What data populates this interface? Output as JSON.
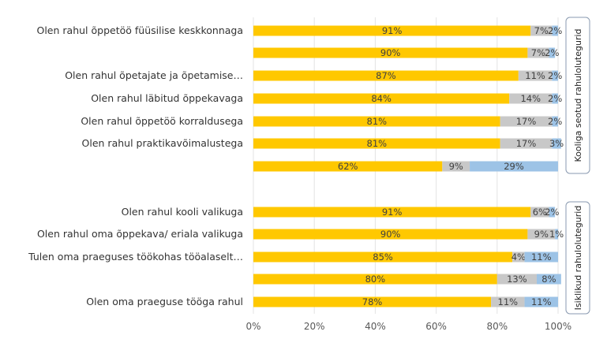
{
  "chart_data": {
    "type": "bar",
    "stacked": true,
    "orientation": "horizontal",
    "xlim": [
      0,
      100
    ],
    "xticks": [
      "0%",
      "20%",
      "40%",
      "60%",
      "80%",
      "100%"
    ],
    "grid": true,
    "colors": [
      "#FFC800",
      "#C8C8C8",
      "#9DC3E6"
    ],
    "groups": [
      {
        "name": "Kooliga seotud rahulolutegurid",
        "categories": [
          {
            "label": "Olen rahul õppetöö füüsilise keskkonnaga",
            "values": [
              91,
              7,
              2
            ]
          },
          {
            "label": "",
            "values": [
              90,
              7,
              2
            ]
          },
          {
            "label": "Olen rahul õpetajate ja õpetamise…",
            "values": [
              87,
              11,
              2
            ]
          },
          {
            "label": "Olen rahul läbitud õppekavaga",
            "values": [
              84,
              14,
              2
            ]
          },
          {
            "label": "Olen rahul õppetöö korraldusega",
            "values": [
              81,
              17,
              2
            ]
          },
          {
            "label": "Olen rahul praktikavõimalustega",
            "values": [
              81,
              17,
              3
            ]
          },
          {
            "label": "",
            "values": [
              62,
              9,
              29
            ]
          }
        ]
      },
      {
        "name": "Isiklikud rahulolutegurid",
        "categories": [
          {
            "label": "Olen rahul kooli valikuga",
            "values": [
              91,
              6,
              2
            ]
          },
          {
            "label": "Olen rahul oma õppekava/ eriala valikuga",
            "values": [
              90,
              9,
              1
            ]
          },
          {
            "label": "Tulen oma praeguses töökohas tööalaselt…",
            "values": [
              85,
              4,
              11
            ]
          },
          {
            "label": "",
            "values": [
              80,
              13,
              8
            ]
          },
          {
            "label": "Olen oma praeguse tööga rahul",
            "values": [
              78,
              11,
              11
            ]
          }
        ]
      }
    ]
  }
}
